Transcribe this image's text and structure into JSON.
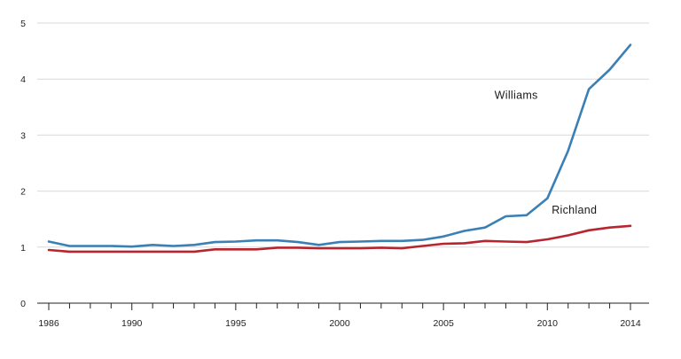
{
  "chart_data": {
    "type": "line",
    "title": "",
    "xlabel": "",
    "ylabel": "",
    "xlim": [
      1986,
      2014
    ],
    "ylim": [
      0,
      5
    ],
    "grid": "horizontal",
    "x_ticks": [
      1986,
      1990,
      1995,
      2000,
      2005,
      2010,
      2014
    ],
    "x_tick_labels": [
      "1986",
      "1990",
      "1995",
      "2000",
      "2005",
      "2010",
      "2014"
    ],
    "y_ticks": [
      0,
      1,
      2,
      3,
      4,
      5
    ],
    "y_tick_labels": [
      "0",
      "1",
      "2",
      "3",
      "4",
      "5"
    ],
    "x": [
      1986,
      1987,
      1988,
      1989,
      1990,
      1991,
      1992,
      1993,
      1994,
      1995,
      1996,
      1997,
      1998,
      1999,
      2000,
      2001,
      2002,
      2003,
      2004,
      2005,
      2006,
      2007,
      2008,
      2009,
      2010,
      2011,
      2012,
      2013,
      2014
    ],
    "series": [
      {
        "name": "Williams",
        "color": "#3a80b5",
        "label_at": [
          2008.5,
          3.65
        ],
        "values": [
          1.1,
          1.02,
          1.02,
          1.02,
          1.01,
          1.04,
          1.02,
          1.04,
          1.09,
          1.1,
          1.12,
          1.12,
          1.09,
          1.04,
          1.09,
          1.1,
          1.11,
          1.11,
          1.13,
          1.19,
          1.29,
          1.35,
          1.55,
          1.57,
          1.87,
          2.72,
          3.82,
          4.17,
          4.61
        ]
      },
      {
        "name": "Richland",
        "color": "#b8252f",
        "label_at": [
          2011.3,
          1.6
        ],
        "values": [
          0.95,
          0.92,
          0.92,
          0.92,
          0.92,
          0.92,
          0.92,
          0.92,
          0.96,
          0.96,
          0.96,
          0.99,
          0.99,
          0.98,
          0.98,
          0.98,
          0.99,
          0.98,
          1.02,
          1.06,
          1.07,
          1.11,
          1.1,
          1.09,
          1.14,
          1.21,
          1.3,
          1.35,
          1.38
        ]
      }
    ]
  }
}
